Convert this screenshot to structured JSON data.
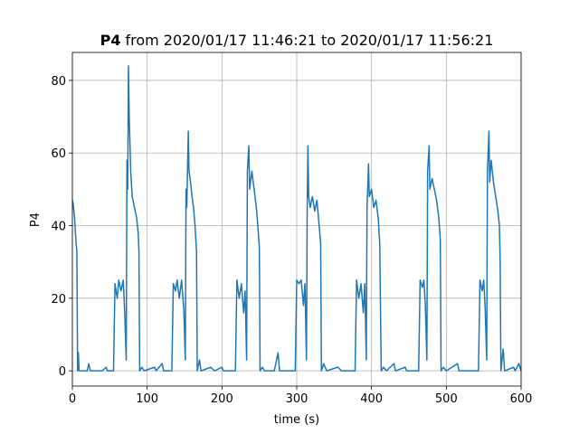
{
  "chart_data": {
    "type": "line",
    "title": {
      "name": "P4",
      "text": "from 2020/01/17 11:46:21 to 2020/01/17 11:56:21"
    },
    "x_label": "time (s)",
    "y_label": "P4",
    "color": "#1f77b4",
    "grid": true,
    "xlim": [
      0,
      600
    ],
    "ylim": [
      -4.2,
      87.7
    ],
    "xticks": [
      0,
      100,
      200,
      300,
      400,
      500,
      600
    ],
    "yticks": [
      0,
      20,
      40,
      60,
      80
    ],
    "x": [
      0,
      1,
      3,
      5,
      6,
      7,
      8,
      9,
      20,
      22,
      24,
      40,
      45,
      47,
      55,
      57,
      60,
      62,
      65,
      68,
      70,
      72,
      73,
      74,
      75,
      76,
      78,
      80,
      83,
      86,
      88,
      89,
      90,
      93,
      96,
      110,
      112,
      120,
      122,
      133,
      135,
      138,
      140,
      143,
      146,
      149,
      151,
      152,
      153,
      155,
      156,
      158,
      160,
      162,
      164,
      166,
      167,
      170,
      172,
      185,
      190,
      200,
      202,
      218,
      220,
      223,
      226,
      229,
      231,
      233,
      234,
      236,
      237,
      240,
      243,
      246,
      248,
      250,
      251,
      254,
      257,
      270,
      275,
      277,
      298,
      300,
      303,
      306,
      309,
      311,
      313,
      314,
      315,
      316,
      318,
      321,
      324,
      327,
      330,
      332,
      333,
      336,
      340,
      355,
      360,
      378,
      380,
      383,
      386,
      389,
      391,
      393,
      394,
      396,
      397,
      400,
      403,
      406,
      409,
      411,
      413,
      416,
      420,
      430,
      432,
      445,
      447,
      463,
      465,
      468,
      470,
      472,
      474,
      475,
      477,
      478,
      481,
      484,
      487,
      490,
      492,
      493,
      496,
      500,
      515,
      517,
      543,
      545,
      548,
      550,
      552,
      554,
      555,
      557,
      558,
      560,
      563,
      566,
      569,
      571,
      572,
      573,
      576,
      578,
      590,
      592,
      597,
      600
    ],
    "values": [
      47,
      46,
      42,
      35,
      33,
      0,
      5,
      0,
      0,
      2,
      0,
      0,
      1,
      0,
      0,
      24,
      20,
      25,
      22,
      25,
      16,
      3,
      58,
      50,
      84,
      70,
      55,
      48,
      45,
      42,
      38,
      33,
      0,
      1,
      0,
      1,
      0,
      2,
      0,
      0,
      24,
      22,
      25,
      20,
      25,
      17,
      3,
      50,
      45,
      66,
      55,
      52,
      48,
      45,
      40,
      33,
      0,
      3,
      0,
      1,
      0,
      1,
      0,
      0,
      25,
      20,
      24,
      16,
      22,
      3,
      55,
      62,
      50,
      55,
      50,
      45,
      40,
      34,
      0,
      1,
      0,
      0,
      5,
      0,
      0,
      25,
      24,
      25,
      18,
      24,
      3,
      45,
      62,
      48,
      45,
      48,
      44,
      47,
      40,
      35,
      0,
      2,
      0,
      1,
      0,
      0,
      25,
      20,
      24,
      16,
      24,
      3,
      45,
      57,
      48,
      50,
      45,
      47,
      42,
      35,
      0,
      1,
      0,
      2,
      0,
      1,
      0,
      0,
      25,
      23,
      25,
      18,
      3,
      55,
      62,
      50,
      53,
      50,
      47,
      42,
      36,
      0,
      1,
      0,
      2,
      0,
      0,
      25,
      22,
      25,
      17,
      3,
      55,
      66,
      52,
      58,
      52,
      48,
      44,
      40,
      30,
      0,
      6,
      0,
      1,
      0,
      2,
      0
    ]
  }
}
